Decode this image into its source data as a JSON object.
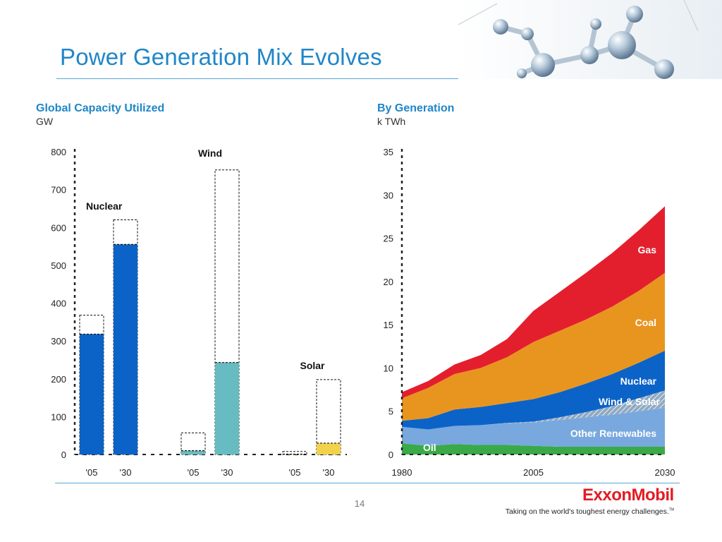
{
  "slide": {
    "title": "Power Generation Mix Evolves",
    "page_number": "14"
  },
  "brand": {
    "logo": "ExxonMobil",
    "tagline": "Taking on the world's toughest energy challenges.",
    "tm": "TM"
  },
  "decor": {
    "hero_image": "molecule-image"
  },
  "colors": {
    "accent": "#1f86c8",
    "nuclear": "#0b63c7",
    "wind": "#67bcc1",
    "solar": "#f2d14b",
    "gas": "#e41f2d",
    "coal": "#e8951f",
    "other_renewables": "#78a8de",
    "oil": "#3aaa48"
  },
  "chart_data": [
    {
      "type": "bar",
      "title": "Global Capacity Utilized",
      "unit": "GW",
      "ylim": [
        0,
        800
      ],
      "yticks": [
        0,
        100,
        200,
        300,
        400,
        500,
        600,
        700,
        800
      ],
      "groups": [
        {
          "label": "Nuclear",
          "color": "#0b63c7",
          "categories": [
            "'05",
            "'30"
          ],
          "utilized": [
            318,
            555
          ],
          "capacity": [
            368,
            620
          ]
        },
        {
          "label": "Wind",
          "color": "#67bcc1",
          "categories": [
            "'05",
            "'30"
          ],
          "utilized": [
            10,
            243
          ],
          "capacity": [
            57,
            752
          ]
        },
        {
          "label": "Solar",
          "color": "#f2d14b",
          "categories": [
            "'05",
            "'30"
          ],
          "utilized": [
            1,
            30
          ],
          "capacity": [
            8,
            198
          ]
        }
      ]
    },
    {
      "type": "area",
      "title": "By Generation",
      "unit": "k TWh",
      "ylim": [
        0,
        35
      ],
      "yticks": [
        0,
        5,
        10,
        15,
        20,
        25,
        30,
        35
      ],
      "xticks": [
        1980,
        2005,
        2030
      ],
      "x": [
        1980,
        1985,
        1990,
        1995,
        2000,
        2005,
        2010,
        2015,
        2020,
        2025,
        2030
      ],
      "series": [
        {
          "name": "Oil",
          "color": "#3aaa48",
          "values": [
            1.3,
            1.0,
            1.2,
            1.1,
            1.1,
            1.0,
            0.9,
            0.9,
            0.9,
            0.9,
            0.9
          ]
        },
        {
          "name": "Other Renewables",
          "color": "#78a8de",
          "values": [
            1.9,
            1.9,
            2.1,
            2.3,
            2.5,
            2.7,
            3.1,
            3.4,
            3.7,
            4.1,
            4.5
          ]
        },
        {
          "name": "Wind & Solar",
          "color": "#9fb7cc",
          "values": [
            0.0,
            0.0,
            0.0,
            0.0,
            0.05,
            0.1,
            0.3,
            0.6,
            1.0,
            1.5,
            2.0
          ]
        },
        {
          "name": "Nuclear",
          "color": "#0b63c7",
          "values": [
            0.7,
            1.3,
            1.9,
            2.1,
            2.3,
            2.6,
            2.9,
            3.3,
            3.7,
            4.1,
            4.6
          ]
        },
        {
          "name": "Coal",
          "color": "#e8951f",
          "values": [
            2.6,
            3.5,
            4.1,
            4.5,
            5.3,
            6.6,
            7.1,
            7.4,
            7.8,
            8.3,
            9.0
          ]
        },
        {
          "name": "Gas",
          "color": "#e41f2d",
          "values": [
            0.7,
            0.8,
            1.1,
            1.5,
            2.1,
            3.6,
            4.5,
            5.4,
            6.2,
            7.0,
            7.7
          ]
        }
      ]
    }
  ]
}
